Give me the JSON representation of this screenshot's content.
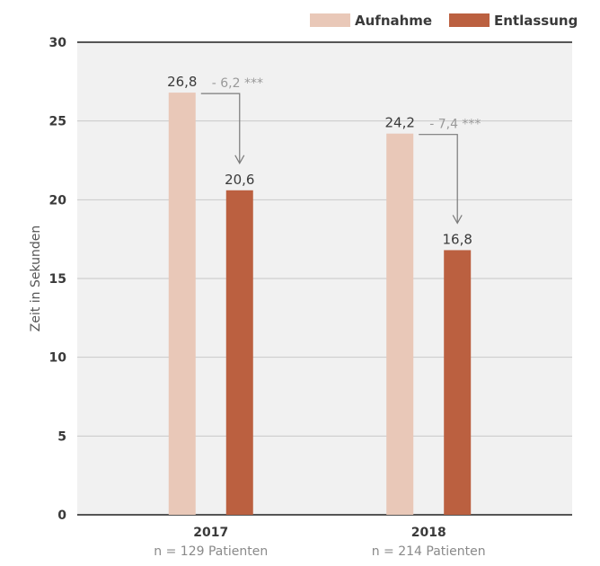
{
  "chart_data": {
    "type": "bar",
    "ylabel": "Zeit in Sekunden",
    "ylim": [
      0,
      30
    ],
    "yticks": [
      0,
      5,
      10,
      15,
      20,
      25,
      30
    ],
    "grid": true,
    "legend_position": "top-right",
    "categories": [
      "2017",
      "2018"
    ],
    "category_subtitles": [
      "n = 129 Patienten",
      "n = 214 Patienten"
    ],
    "series": [
      {
        "name": "Aufnahme",
        "color": "#e9c8b8",
        "values": [
          26.8,
          24.2
        ],
        "labels": [
          "26,8",
          "24,2"
        ]
      },
      {
        "name": "Entlassung",
        "color": "#bb6040",
        "values": [
          20.6,
          16.8
        ],
        "labels": [
          "20,6",
          "16,8"
        ]
      }
    ],
    "annotations": [
      {
        "category": "2017",
        "text": "- 6,2 ***"
      },
      {
        "category": "2018",
        "text": "- 7,4 ***"
      }
    ]
  }
}
